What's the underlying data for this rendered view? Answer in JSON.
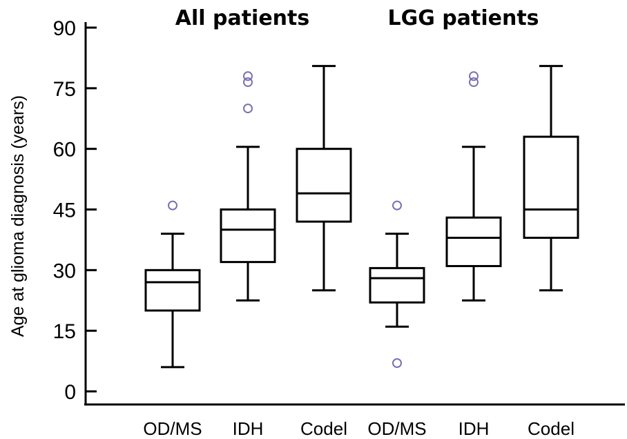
{
  "chart_data": {
    "type": "box",
    "ylabel": "Age at glioma diagnosis (years)",
    "ylim": [
      0,
      90
    ],
    "yticks": [
      0,
      15,
      30,
      45,
      60,
      75,
      90
    ],
    "grid": false,
    "groups": [
      {
        "title": "All patients",
        "categories": [
          0,
          1,
          2
        ]
      },
      {
        "title": "LGG patients",
        "categories": [
          3,
          4,
          5
        ]
      }
    ],
    "categories": [
      "OD/MS",
      "IDH",
      "Codel",
      "OD/MS",
      "IDH",
      "Codel"
    ],
    "boxes": [
      {
        "category": "OD/MS",
        "group": "All patients",
        "whisker_low": 6,
        "q1": 20,
        "median": 27,
        "q3": 30,
        "whisker_high": 39,
        "outliers": [
          46
        ]
      },
      {
        "category": "IDH",
        "group": "All patients",
        "whisker_low": 22.5,
        "q1": 32,
        "median": 40,
        "q3": 45,
        "whisker_high": 60.5,
        "outliers": [
          70,
          76.5,
          78
        ]
      },
      {
        "category": "Codel",
        "group": "All patients",
        "whisker_low": 25,
        "q1": 42,
        "median": 49,
        "q3": 60,
        "whisker_high": 80.5,
        "outliers": []
      },
      {
        "category": "OD/MS",
        "group": "LGG patients",
        "whisker_low": 16,
        "q1": 22,
        "median": 28,
        "q3": 30.5,
        "whisker_high": 39,
        "outliers": [
          7,
          46
        ]
      },
      {
        "category": "IDH",
        "group": "LGG patients",
        "whisker_low": 22.5,
        "q1": 31,
        "median": 38,
        "q3": 43,
        "whisker_high": 60.5,
        "outliers": [
          76.5,
          78
        ]
      },
      {
        "category": "Codel",
        "group": "LGG patients",
        "whisker_low": 25,
        "q1": 38,
        "median": 45,
        "q3": 63,
        "whisker_high": 80.5,
        "outliers": []
      }
    ],
    "colors": {
      "box_stroke": "#000000",
      "outlier_stroke": "#7a6fb0"
    }
  }
}
